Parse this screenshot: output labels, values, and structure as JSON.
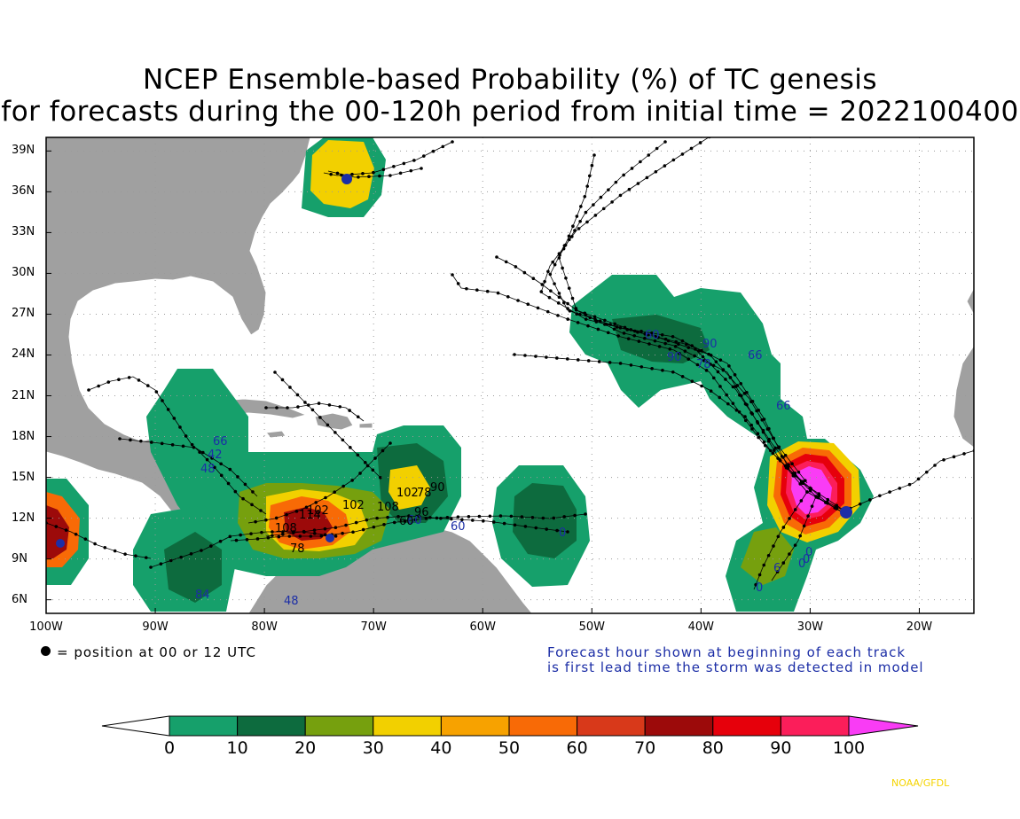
{
  "title": {
    "line1": "NCEP Ensemble-based Probability (%) of TC genesis",
    "line2": "for forecasts during the 00-120h period from initial time = 2022100400"
  },
  "map": {
    "lat_labels": [
      "39N",
      "36N",
      "33N",
      "30N",
      "27N",
      "24N",
      "21N",
      "18N",
      "15N",
      "12N",
      "9N",
      "6N"
    ],
    "lon_labels": [
      "100W",
      "90W",
      "80W",
      "70W",
      "60W",
      "50W",
      "40W",
      "30W",
      "20W"
    ],
    "lat_range": [
      5,
      40
    ],
    "lon_range": [
      -100,
      -15
    ],
    "land_color": "#a0a0a0",
    "track_color": "#000000",
    "hour_label_color": "#1c2ea6",
    "hour_labels_blue": [
      "66",
      "42",
      "48",
      "84",
      "48",
      "60",
      "60",
      "60",
      "90",
      "90",
      "78",
      "66",
      "66",
      "0",
      "0",
      "0",
      "6",
      "0",
      "0"
    ],
    "hour_labels_black": [
      "102",
      "102",
      "108",
      "114",
      "78",
      "102",
      "78",
      "96",
      "108",
      "90",
      "60"
    ]
  },
  "legend": {
    "marker_text": "= position at 00 or 12 UTC",
    "note_line1": "Forecast hour shown at beginning of each track",
    "note_line2": "is first lead time the storm was detected in model"
  },
  "colorbar": {
    "labels": [
      "0",
      "10",
      "20",
      "30",
      "40",
      "50",
      "60",
      "70",
      "80",
      "90",
      "100"
    ],
    "colors": [
      "#16a06b",
      "#0d6b3e",
      "#76a00e",
      "#f2d000",
      "#f7a200",
      "#f86a06",
      "#d8391a",
      "#9c0a0a",
      "#e6000b",
      "#fb1e5a",
      "#f93cf5"
    ]
  },
  "credit": "NOAA/GFDL"
}
